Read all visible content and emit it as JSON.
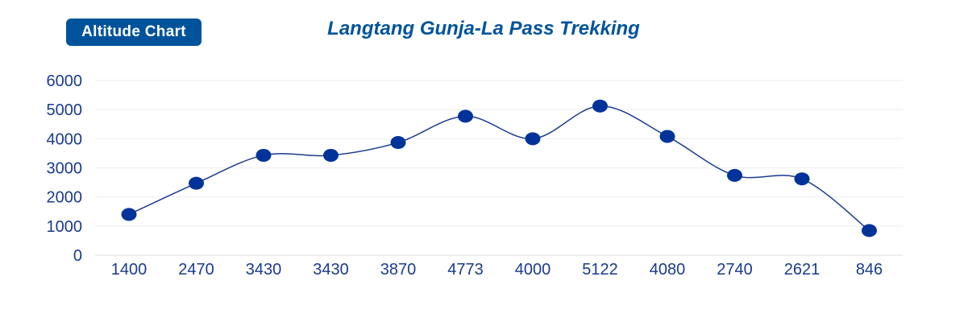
{
  "header": {
    "badge_label": "Altitude Chart",
    "title": "Langtang Gunja-La Pass Trekking"
  },
  "colors": {
    "accent": "#00539b",
    "marker": "#003399",
    "line": "#1a3a8f",
    "tick_text": "#1a3a8f",
    "grid": "#eeeeee"
  },
  "chart_data": {
    "type": "line",
    "title": "Langtang Gunja-La Pass Trekking",
    "xlabel": "",
    "ylabel": "",
    "categories": [
      "1400",
      "2470",
      "3430",
      "3430",
      "3870",
      "4773",
      "4000",
      "5122",
      "4080",
      "2740",
      "2621",
      "846"
    ],
    "series": [
      {
        "values": [
          1400,
          2470,
          3430,
          3430,
          3870,
          4773,
          4000,
          5122,
          4080,
          2740,
          2621,
          846
        ]
      }
    ],
    "ylim": [
      0,
      6000
    ],
    "yticks": [
      0,
      1000,
      2000,
      3000,
      4000,
      5000,
      6000
    ],
    "grid": true,
    "smooth": true,
    "legend": "none"
  }
}
